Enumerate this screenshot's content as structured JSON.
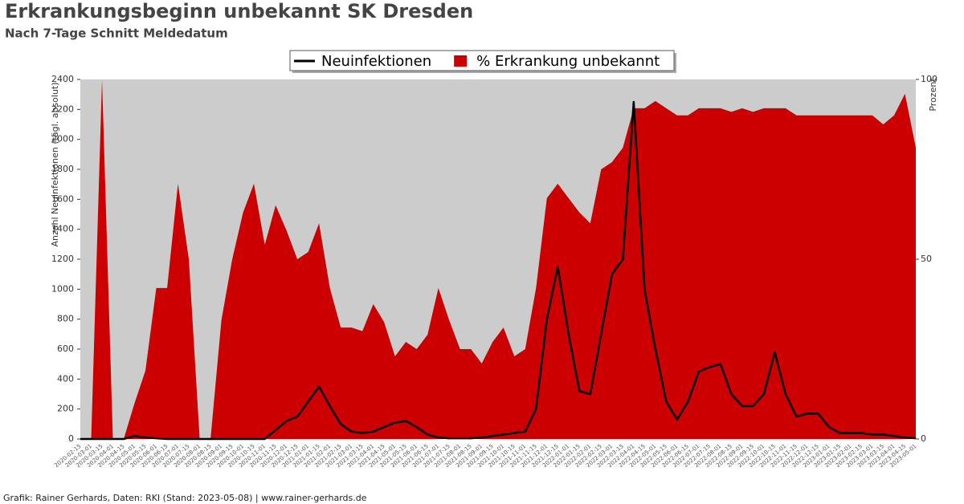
{
  "chart_data": {
    "type": "line-area",
    "title": "Erkrankungsbeginn unbekannt SK Dresden",
    "subtitle": "Nach 7-Tage Schnitt Meldedatum",
    "ylabel": "Anzahl Neuinfektionen (tägl. absolut)",
    "y2label": "Prozent",
    "footer": "Grafik: Rainer Gerhards, Daten: RKI (Stand: 2023-05-08) | www.rainer-gerhards.de",
    "categories": [
      "2020-02-15",
      "2020-03-01",
      "2020-03-15",
      "2020-04-01",
      "2020-04-15",
      "2020-05-01",
      "2020-05-15",
      "2020-06-01",
      "2020-06-15",
      "2020-07-01",
      "2020-07-15",
      "2020-08-01",
      "2020-08-15",
      "2020-09-01",
      "2020-09-15",
      "2020-10-01",
      "2020-10-15",
      "2020-11-01",
      "2020-11-15",
      "2020-12-01",
      "2020-12-15",
      "2021-01-01",
      "2021-01-15",
      "2021-02-01",
      "2021-02-15",
      "2021-03-01",
      "2021-03-15",
      "2021-04-01",
      "2021-04-15",
      "2021-05-01",
      "2021-05-15",
      "2021-06-01",
      "2021-06-15",
      "2021-07-01",
      "2021-07-15",
      "2021-08-01",
      "2021-08-15",
      "2021-09-01",
      "2021-09-15",
      "2021-10-01",
      "2021-10-15",
      "2021-11-01",
      "2021-11-15",
      "2021-12-01",
      "2021-12-15",
      "2022-01-01",
      "2022-01-15",
      "2022-02-01",
      "2022-02-15",
      "2022-03-01",
      "2022-03-15",
      "2022-04-01",
      "2022-04-15",
      "2022-05-01",
      "2022-05-15",
      "2022-06-01",
      "2022-06-15",
      "2022-07-01",
      "2022-07-15",
      "2022-08-01",
      "2022-08-15",
      "2022-09-01",
      "2022-09-15",
      "2022-10-01",
      "2022-10-15",
      "2022-11-01",
      "2022-11-15",
      "2022-12-01",
      "2022-12-15",
      "2023-01-01",
      "2023-01-15",
      "2023-02-01",
      "2023-02-15",
      "2023-03-01",
      "2023-03-15",
      "2023-04-01",
      "2023-04-15",
      "2023-05-01"
    ],
    "series": [
      {
        "name": "Neuinfektionen",
        "color": "#000000",
        "values": [
          0,
          0,
          0,
          0,
          0,
          20,
          10,
          5,
          0,
          0,
          0,
          0,
          0,
          0,
          0,
          0,
          0,
          0,
          60,
          120,
          150,
          250,
          350,
          220,
          100,
          50,
          40,
          50,
          80,
          110,
          120,
          80,
          30,
          10,
          5,
          5,
          5,
          10,
          20,
          30,
          40,
          50,
          200,
          800,
          1150,
          700,
          320,
          300,
          700,
          1100,
          1200,
          2250,
          1000,
          600,
          250,
          130,
          250,
          450,
          480,
          500,
          300,
          220,
          220,
          300,
          580,
          300,
          150,
          170,
          170,
          80,
          40,
          40,
          40,
          30,
          30,
          20,
          10,
          5
        ]
      },
      {
        "name": "% Erkrankung unbekannt",
        "color": "#cc0000",
        "axis": "y2",
        "values": [
          0,
          0,
          100,
          0,
          0,
          10,
          19,
          42,
          42,
          71,
          50,
          0,
          0,
          33,
          50,
          63,
          71,
          54,
          65,
          58,
          50,
          52,
          60,
          42,
          31,
          31,
          30,
          37.5,
          32.5,
          23,
          27,
          25,
          29,
          42,
          33,
          25,
          25,
          21,
          27,
          31,
          23,
          25,
          42,
          67,
          71,
          67,
          63,
          60,
          75,
          77,
          81,
          92,
          92,
          94,
          92,
          90,
          90,
          92,
          92,
          92,
          91,
          92,
          91,
          92,
          92,
          92,
          90,
          90,
          90,
          90,
          90,
          90,
          90,
          90,
          87.5,
          90,
          96,
          81
        ]
      }
    ],
    "ylim": [
      0,
      2400
    ],
    "yticks": [
      0,
      200,
      400,
      600,
      800,
      1000,
      1200,
      1400,
      1600,
      1800,
      2000,
      2200,
      2400
    ],
    "y2lim": [
      0,
      100
    ],
    "y2ticks": [
      0,
      50,
      100
    ]
  }
}
